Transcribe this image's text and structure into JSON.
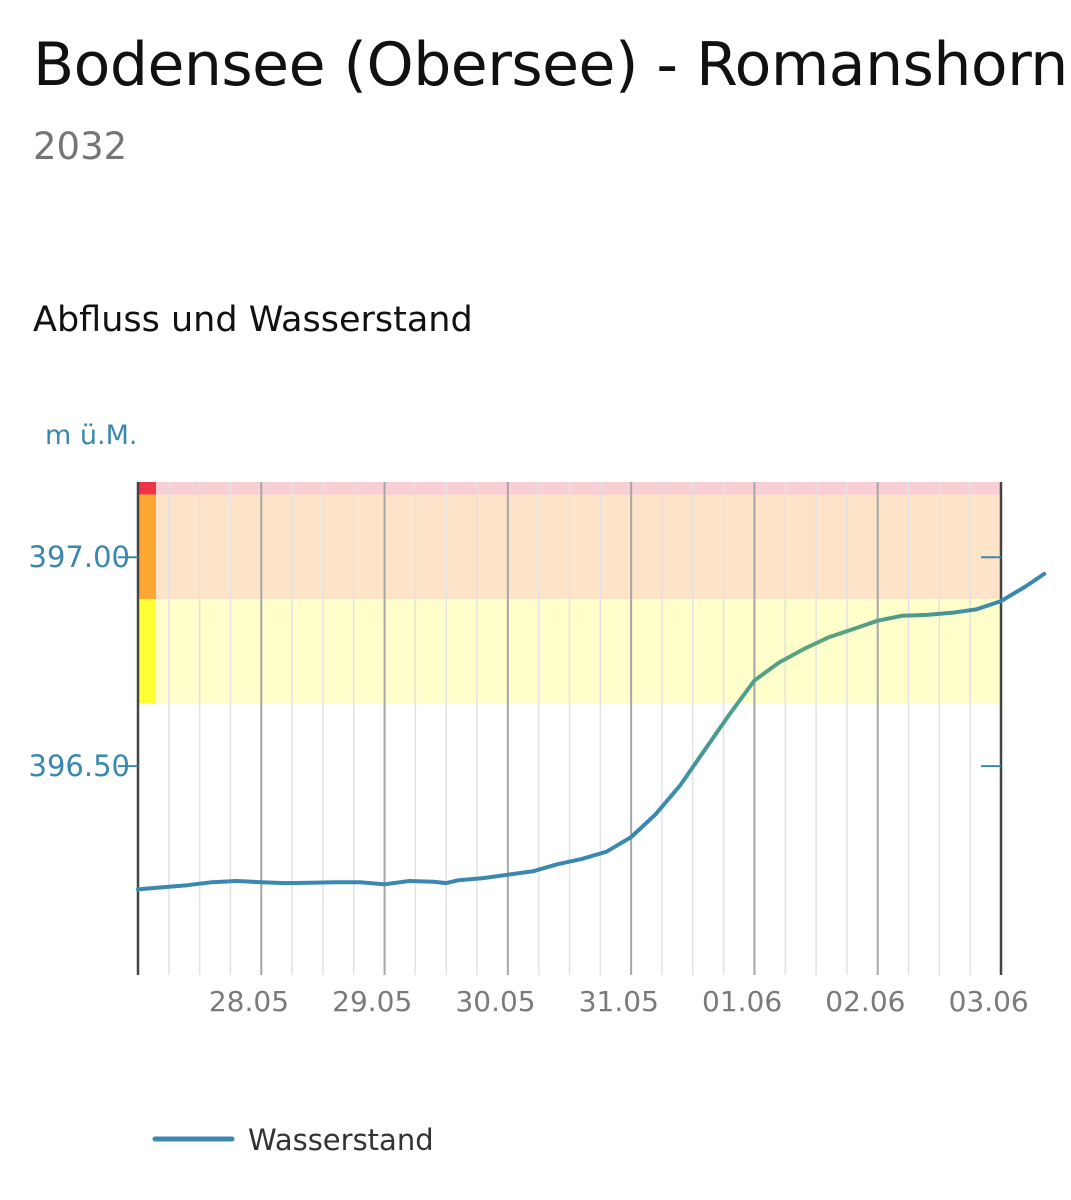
{
  "header": {
    "title": "Bodensee (Obersee) - Romanshorn",
    "station_id": "2032"
  },
  "section": {
    "title": "Abfluss und Wasserstand"
  },
  "chart_data": {
    "type": "line",
    "ylabel": "m ü.M.",
    "ylim": [
      396.0,
      397.18
    ],
    "yticks": [
      {
        "value": 396.5,
        "label": "396.50"
      },
      {
        "value": 397.0,
        "label": "397.00"
      }
    ],
    "xlim": [
      27.6,
      34.6
    ],
    "xticks": [
      {
        "value": 28.5,
        "label": "28.05"
      },
      {
        "value": 29.5,
        "label": "29.05"
      },
      {
        "value": 30.5,
        "label": "30.05"
      },
      {
        "value": 31.5,
        "label": "31.05"
      },
      {
        "value": 32.5,
        "label": "01.06"
      },
      {
        "value": 33.5,
        "label": "02.06"
      },
      {
        "value": 34.5,
        "label": "03.06"
      }
    ],
    "day_boundaries": [
      28.6,
      29.6,
      30.6,
      31.6,
      32.6,
      33.6
    ],
    "grid": true,
    "danger_bands": [
      {
        "level": 1,
        "from": 396.0,
        "to": 396.65,
        "fill": "#ffffff",
        "marker": "#ffffff"
      },
      {
        "level": 2,
        "from": 396.65,
        "to": 396.9,
        "fill": "#ffffcc",
        "marker": "#ffff33"
      },
      {
        "level": 3,
        "from": 396.9,
        "to": 397.15,
        "fill": "#fde4c8",
        "marker": "#ffa733"
      },
      {
        "level": 4,
        "from": 397.15,
        "to": 397.18,
        "fill": "#f9cfd6",
        "marker": "#ee3344"
      }
    ],
    "series": [
      {
        "name": "Wasserstand",
        "color": "#3a88b0",
        "points": [
          [
            27.6,
            396.205
          ],
          [
            27.8,
            396.21
          ],
          [
            28.0,
            396.215
          ],
          [
            28.2,
            396.222
          ],
          [
            28.4,
            396.225
          ],
          [
            28.6,
            396.222
          ],
          [
            28.8,
            396.22
          ],
          [
            29.0,
            396.221
          ],
          [
            29.2,
            396.222
          ],
          [
            29.4,
            396.222
          ],
          [
            29.6,
            396.217
          ],
          [
            29.8,
            396.225
          ],
          [
            30.0,
            396.223
          ],
          [
            30.1,
            396.22
          ],
          [
            30.2,
            396.227
          ],
          [
            30.4,
            396.232
          ],
          [
            30.6,
            396.24
          ],
          [
            30.8,
            396.248
          ],
          [
            31.0,
            396.265
          ],
          [
            31.2,
            396.278
          ],
          [
            31.4,
            396.295
          ],
          [
            31.6,
            396.33
          ],
          [
            31.8,
            396.385
          ],
          [
            32.0,
            396.455
          ],
          [
            32.2,
            396.54
          ],
          [
            32.4,
            396.625
          ],
          [
            32.6,
            396.705
          ],
          [
            32.8,
            396.748
          ],
          [
            33.0,
            396.78
          ],
          [
            33.2,
            396.808
          ],
          [
            33.4,
            396.828
          ],
          [
            33.6,
            396.848
          ],
          [
            33.8,
            396.86
          ],
          [
            34.0,
            396.862
          ],
          [
            34.2,
            396.867
          ],
          [
            34.4,
            396.875
          ],
          [
            34.6,
            396.895
          ],
          [
            34.8,
            396.93
          ],
          [
            34.95,
            396.96
          ]
        ]
      }
    ],
    "legend_position": "bottom-left"
  }
}
